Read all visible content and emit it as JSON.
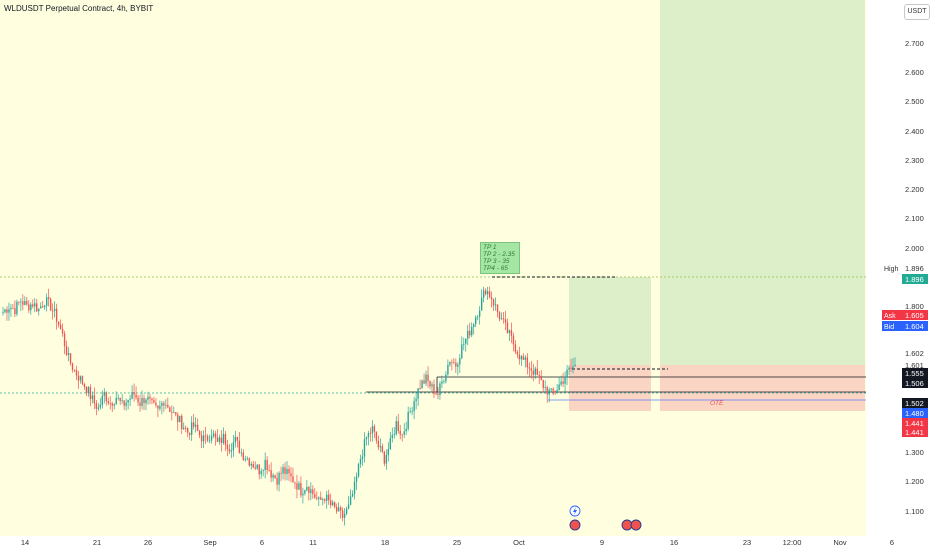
{
  "title": "WLDUSDT Perpetual Contract, 4h, BYBIT",
  "currency": "USDT",
  "tp_box": {
    "line1": "TP 1",
    "line2": "TP 2 - 2.35",
    "line3": "TP 3 - 35",
    "line4": "TP4 - 65"
  },
  "ote_label": "OTE",
  "colors": {
    "background": "#ffffe0",
    "up_candle": "#26a69a",
    "down_candle": "#ef5350",
    "target_zone": "#dcefc9",
    "stop_zone": "#fad5c3",
    "price_black": "#131722",
    "price_blue": "#2962ff",
    "price_red": "#f23645",
    "price_green": "#22ab94"
  },
  "chart_data": {
    "type": "candlestick",
    "symbol": "WLDUSDT",
    "interval": "4h",
    "exchange": "BYBIT",
    "ylim": [
      1.06,
      2.78
    ],
    "y_ticks": [
      "2.700",
      "2.600",
      "2.500",
      "2.400",
      "2.300",
      "2.200",
      "2.100",
      "2.000",
      "1.800",
      "1.602",
      "1.300",
      "1.200",
      "1.100"
    ],
    "x_ticks": [
      "14",
      "21",
      "26",
      "Sep",
      "6",
      "11",
      "18",
      "25",
      "Oct",
      "9",
      "16",
      "23",
      "12:00",
      "Nov",
      "6"
    ],
    "price_tags": [
      {
        "label": "High",
        "value": "1.896",
        "kind": "high"
      },
      {
        "label": "",
        "value": "1.896",
        "kind": "green"
      },
      {
        "label": "Ask",
        "value": "1.605",
        "kind": "red"
      },
      {
        "label": "Bid",
        "value": "1.604",
        "kind": "blue"
      },
      {
        "label": "",
        "value": "1.601",
        "kind": "plain"
      },
      {
        "label": "",
        "value": "1.555",
        "kind": "black"
      },
      {
        "label": "",
        "value": "1.506",
        "kind": "black"
      },
      {
        "label": "",
        "value": "1.502",
        "kind": "black"
      },
      {
        "label": "",
        "value": "1.480",
        "kind": "blue"
      },
      {
        "label": "",
        "value": "1.441",
        "kind": "red"
      },
      {
        "label": "",
        "value": "1.441",
        "kind": "red"
      }
    ],
    "levels": {
      "high_dotted": 1.896,
      "entry_dotted": 1.505,
      "box_top": 1.555,
      "box_line": 1.506,
      "box_low": 1.48,
      "tp_dashed": 1.896,
      "stop_dashed": 1.58
    },
    "candles_close": [
      1.78,
      1.8,
      1.79,
      1.82,
      1.8,
      1.81,
      1.79,
      1.82,
      1.8,
      1.76,
      1.7,
      1.62,
      1.58,
      1.55,
      1.52,
      1.48,
      1.45,
      1.5,
      1.47,
      1.49,
      1.46,
      1.48,
      1.5,
      1.47,
      1.49,
      1.46,
      1.44,
      1.48,
      1.45,
      1.42,
      1.4,
      1.37,
      1.39,
      1.36,
      1.34,
      1.37,
      1.33,
      1.35,
      1.32,
      1.34,
      1.3,
      1.28,
      1.26,
      1.24,
      1.27,
      1.23,
      1.21,
      1.24,
      1.22,
      1.2,
      1.17,
      1.19,
      1.16,
      1.13,
      1.15,
      1.12,
      1.1,
      1.08,
      1.11,
      1.18,
      1.28,
      1.35,
      1.38,
      1.32,
      1.28,
      1.33,
      1.4,
      1.36,
      1.42,
      1.48,
      1.53,
      1.55,
      1.52,
      1.5,
      1.56,
      1.62,
      1.6,
      1.66,
      1.7,
      1.75,
      1.8,
      1.86,
      1.83,
      1.78,
      1.74,
      1.7,
      1.66,
      1.62,
      1.6,
      1.58,
      1.55,
      1.52,
      1.5,
      1.52,
      1.55,
      1.58,
      1.6
    ]
  }
}
